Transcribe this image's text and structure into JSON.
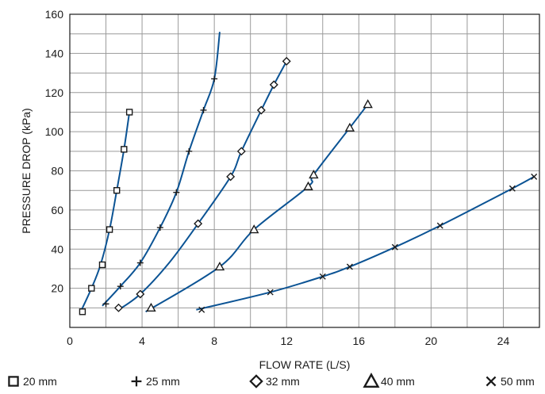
{
  "chart_data": {
    "type": "line",
    "title": "",
    "xlabel": "FLOW RATE (L/S)",
    "ylabel": "PRESSURE DROP (kPa)",
    "xlim": [
      0,
      26
    ],
    "ylim": [
      0,
      160
    ],
    "x_ticks": [
      "0",
      "4",
      "8",
      "12",
      "16",
      "20",
      "24"
    ],
    "y_ticks": [
      "20",
      "40",
      "60",
      "80",
      "100",
      "120",
      "140",
      "160"
    ],
    "grid": true,
    "legend_position": "bottom",
    "line_color": "#0b5394",
    "series": [
      {
        "name": "20 mm",
        "marker": "square",
        "points": [
          [
            0.7,
            8
          ],
          [
            1.2,
            20
          ],
          [
            1.8,
            32
          ],
          [
            2.2,
            50
          ],
          [
            2.6,
            70
          ],
          [
            3.0,
            91
          ],
          [
            3.3,
            110
          ]
        ],
        "curve": [
          [
            0.6,
            8
          ],
          [
            1.2,
            20
          ],
          [
            1.7,
            32
          ],
          [
            2.2,
            50
          ],
          [
            2.6,
            70
          ],
          [
            3.0,
            91
          ],
          [
            3.3,
            110
          ]
        ]
      },
      {
        "name": "25 mm",
        "marker": "plus",
        "points": [
          [
            2.0,
            12
          ],
          [
            2.8,
            21
          ],
          [
            3.9,
            33
          ],
          [
            5.0,
            51
          ],
          [
            5.9,
            69
          ],
          [
            6.6,
            90
          ],
          [
            7.4,
            111
          ],
          [
            8.0,
            127
          ]
        ],
        "curve": [
          [
            1.8,
            11
          ],
          [
            2.8,
            21
          ],
          [
            3.9,
            33
          ],
          [
            5.0,
            51
          ],
          [
            5.9,
            69
          ],
          [
            6.6,
            90
          ],
          [
            7.4,
            111
          ],
          [
            8.0,
            127
          ],
          [
            8.3,
            151
          ]
        ]
      },
      {
        "name": "32 mm",
        "marker": "diamond",
        "points": [
          [
            2.7,
            10
          ],
          [
            3.9,
            17
          ],
          [
            7.1,
            53
          ],
          [
            8.9,
            77
          ],
          [
            9.5,
            90
          ],
          [
            10.6,
            111
          ],
          [
            11.3,
            124
          ],
          [
            12.0,
            136
          ]
        ],
        "curve": [
          [
            2.7,
            9
          ],
          [
            3.9,
            17
          ],
          [
            5.5,
            33
          ],
          [
            7.1,
            53
          ],
          [
            8.9,
            77
          ],
          [
            9.5,
            90
          ],
          [
            10.6,
            111
          ],
          [
            11.3,
            124
          ],
          [
            12.0,
            136
          ]
        ]
      },
      {
        "name": "40 mm",
        "marker": "triangle",
        "points": [
          [
            4.5,
            10
          ],
          [
            8.3,
            31
          ],
          [
            10.2,
            50
          ],
          [
            13.2,
            72
          ],
          [
            13.5,
            78
          ],
          [
            15.5,
            102
          ],
          [
            16.5,
            114
          ]
        ],
        "curve": [
          [
            4.2,
            8
          ],
          [
            8.3,
            31
          ],
          [
            10.2,
            50
          ],
          [
            13.2,
            72
          ],
          [
            13.5,
            78
          ],
          [
            15.5,
            102
          ],
          [
            16.5,
            114
          ]
        ]
      },
      {
        "name": "50 mm",
        "marker": "x",
        "points": [
          [
            7.3,
            9
          ],
          [
            11.1,
            18
          ],
          [
            14.0,
            26
          ],
          [
            15.5,
            31
          ],
          [
            18.0,
            41
          ],
          [
            20.5,
            52
          ],
          [
            24.5,
            71
          ],
          [
            25.7,
            77
          ]
        ],
        "curve": [
          [
            7.0,
            9
          ],
          [
            11.1,
            18
          ],
          [
            14.0,
            26
          ],
          [
            15.5,
            31
          ],
          [
            18.0,
            41
          ],
          [
            20.5,
            52
          ],
          [
            24.5,
            71
          ],
          [
            25.7,
            77
          ]
        ]
      }
    ]
  }
}
